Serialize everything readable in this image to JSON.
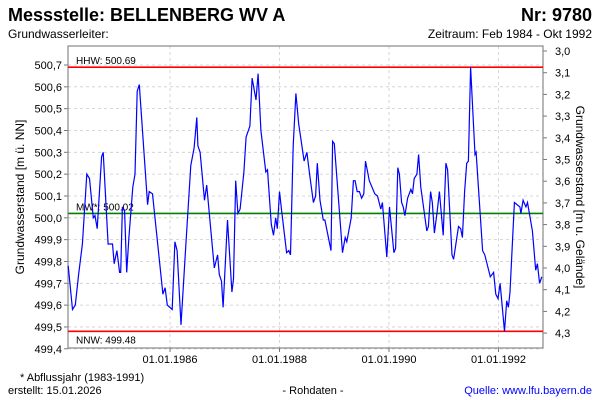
{
  "header": {
    "title": "Messstelle: BELLENBERG WV A",
    "number": "Nr: 9780",
    "aquifer": "Grundwasserleiter:",
    "period": "Zeitraum: Feb 1984 - Okt 1992"
  },
  "footer": {
    "note": "* Abflussjahr (1983-1991)",
    "created": "erstellt:  15.01.2026",
    "raw": "- Rohdaten -",
    "source": "Quelle: www.lfu.bayern.de"
  },
  "colors": {
    "line": "#0000ff",
    "extreme": "#ff0000",
    "mean": "#008000",
    "grid": "#cccccc",
    "source": "#0000ff"
  },
  "chart_data": {
    "type": "line",
    "ylabel": "Grundwasserstand [m ü. NN]",
    "ylabel_right": "Grundwasserstand [m u. Gelände]",
    "ylim": [
      499.4,
      500.7
    ],
    "yticks": [
      "499,4",
      "499,5",
      "499,6",
      "499,7",
      "499,8",
      "499,9",
      "500,0",
      "500,1",
      "500,2",
      "500,3",
      "500,4",
      "500,5",
      "500,6",
      "500,7"
    ],
    "yticks_right": [
      "3,0",
      "3,1",
      "3,2",
      "3,3",
      "3,4",
      "3,5",
      "3,6",
      "3,7",
      "3,8",
      "3,9",
      "4,0",
      "4,1",
      "4,2",
      "4,3"
    ],
    "xlim": [
      1984.1,
      1992.8
    ],
    "xticks": [
      {
        "t": 1986,
        "label": "01.01.1986"
      },
      {
        "t": 1988,
        "label": "01.01.1988"
      },
      {
        "t": 1990,
        "label": "01.01.1990"
      },
      {
        "t": 1992,
        "label": "01.01.1992"
      }
    ],
    "reference_lines": [
      {
        "name": "HHW",
        "label": "HHW: 500.69",
        "value": 500.69,
        "color": "#ff0000"
      },
      {
        "name": "MW",
        "label": "MW*: 500.02",
        "value": 500.02,
        "color": "#008000"
      },
      {
        "name": "NNW",
        "label": "NNW: 499.48",
        "value": 499.48,
        "color": "#ff0000"
      }
    ],
    "series": [
      {
        "name": "Grundwasserstand",
        "t": [
          1984.14,
          1984.22,
          1984.27,
          1984.33,
          1984.4,
          1984.48,
          1984.53,
          1984.6,
          1984.63,
          1984.67,
          1984.75,
          1984.78,
          1984.87,
          1984.95,
          1984.98,
          1985.03,
          1985.08,
          1985.1,
          1985.13,
          1985.17,
          1985.21,
          1985.25,
          1985.32,
          1985.36,
          1985.4,
          1985.44,
          1985.59,
          1985.62,
          1985.68,
          1985.87,
          1985.91,
          1985.95,
          1986.04,
          1986.09,
          1986.13,
          1986.2,
          1986.29,
          1986.38,
          1986.44,
          1986.49,
          1986.51,
          1986.55,
          1986.63,
          1986.67,
          1986.81,
          1986.87,
          1986.9,
          1986.94,
          1986.97,
          1987.05,
          1987.13,
          1987.16,
          1987.2,
          1987.24,
          1987.28,
          1987.35,
          1987.39,
          1987.46,
          1987.5,
          1987.57,
          1987.61,
          1987.66,
          1987.75,
          1987.78,
          1987.85,
          1987.89,
          1987.93,
          1987.96,
          1988.0,
          1988.04,
          1988.13,
          1988.17,
          1988.2,
          1988.25,
          1988.3,
          1988.35,
          1988.45,
          1988.5,
          1988.55,
          1988.62,
          1988.66,
          1988.69,
          1988.74,
          1988.8,
          1988.83,
          1988.94,
          1988.97,
          1989.0,
          1989.15,
          1989.2,
          1989.23,
          1989.31,
          1989.35,
          1989.38,
          1989.42,
          1989.46,
          1989.5,
          1989.54,
          1989.57,
          1989.64,
          1989.74,
          1989.79,
          1989.85,
          1989.88,
          1989.96,
          1990.01,
          1990.09,
          1990.12,
          1990.16,
          1990.19,
          1990.23,
          1990.26,
          1990.29,
          1990.34,
          1990.4,
          1990.43,
          1990.46,
          1990.51,
          1990.54,
          1990.58,
          1990.69,
          1990.72,
          1990.76,
          1990.79,
          1990.83,
          1990.88,
          1990.92,
          1990.99,
          1991.04,
          1991.07,
          1991.15,
          1991.18,
          1991.27,
          1991.31,
          1991.34,
          1991.38,
          1991.42,
          1991.45,
          1991.49,
          1991.57,
          1991.59,
          1991.71,
          1991.75,
          1991.85,
          1991.91,
          1991.95,
          1991.99,
          1992.03,
          1992.11,
          1992.15,
          1992.18,
          1992.21,
          1992.29,
          1992.39,
          1992.41,
          1992.45,
          1992.5,
          1992.53,
          1992.62,
          1992.68,
          1992.71,
          1992.75,
          1992.79
        ],
        "values": [
          499.78,
          499.58,
          499.6,
          499.74,
          499.88,
          500.2,
          500.18,
          500.0,
          500.01,
          499.95,
          500.28,
          500.3,
          499.88,
          499.88,
          499.79,
          499.85,
          499.75,
          499.75,
          500.05,
          500.03,
          499.75,
          499.91,
          500.14,
          500.2,
          500.58,
          500.61,
          500.06,
          500.12,
          500.11,
          499.65,
          499.68,
          499.6,
          499.58,
          499.89,
          499.85,
          499.51,
          499.88,
          500.24,
          500.32,
          500.46,
          500.33,
          500.3,
          500.08,
          500.15,
          499.77,
          499.83,
          499.74,
          499.71,
          499.59,
          499.99,
          499.66,
          499.72,
          500.17,
          500.02,
          500.04,
          500.21,
          500.37,
          500.42,
          500.64,
          500.54,
          500.66,
          500.4,
          500.21,
          500.22,
          499.97,
          499.92,
          500.0,
          499.95,
          500.12,
          500.03,
          499.84,
          499.85,
          499.83,
          500.33,
          500.57,
          500.43,
          500.26,
          500.3,
          500.2,
          500.07,
          500.1,
          500.25,
          500.08,
          499.99,
          499.99,
          499.85,
          500.35,
          500.34,
          499.84,
          499.91,
          499.89,
          500.0,
          500.17,
          500.17,
          500.12,
          500.12,
          500.09,
          500.11,
          500.26,
          500.17,
          500.11,
          500.1,
          500.04,
          500.07,
          499.82,
          500.05,
          499.84,
          499.86,
          500.23,
          500.2,
          500.07,
          500.05,
          500.01,
          500.09,
          500.13,
          500.11,
          500.18,
          500.2,
          500.29,
          500.14,
          499.94,
          499.96,
          500.12,
          500.07,
          499.93,
          500.03,
          500.12,
          499.92,
          500.25,
          500.22,
          499.83,
          499.81,
          499.96,
          499.95,
          499.91,
          500.12,
          500.25,
          500.26,
          500.69,
          500.29,
          500.3,
          499.85,
          499.83,
          499.73,
          499.75,
          499.65,
          499.63,
          499.7,
          499.48,
          499.62,
          499.59,
          499.66,
          500.07,
          500.05,
          500.02,
          500.08,
          500.05,
          500.07,
          499.94,
          499.76,
          499.79,
          499.7,
          499.73
        ]
      }
    ]
  }
}
